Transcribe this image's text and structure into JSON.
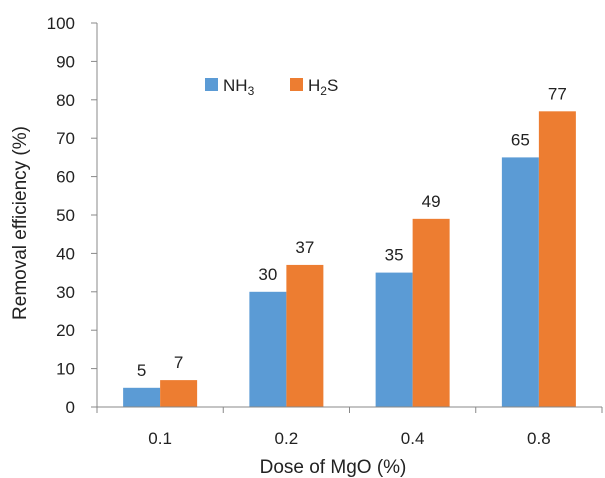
{
  "chart_data": {
    "type": "bar",
    "title": "",
    "xlabel": "Dose of MgO (%)",
    "ylabel": "Removal efficiency (%)",
    "categories": [
      "0.1",
      "0.2",
      "0.4",
      "0.8"
    ],
    "ylim": [
      0,
      100
    ],
    "yticks": [
      0,
      10,
      20,
      30,
      40,
      50,
      60,
      70,
      80,
      90,
      100
    ],
    "grid": false,
    "legend_position": "top-left",
    "series": [
      {
        "name": "NH3",
        "name_main": "NH",
        "name_sub": "3",
        "name_tail": "",
        "color": "#5B9BD5",
        "values": [
          5,
          30,
          35,
          65
        ],
        "labels": [
          "5",
          "30",
          "35",
          "65"
        ]
      },
      {
        "name": "H2S",
        "name_main": "H",
        "name_sub": "2",
        "name_tail": "S",
        "color": "#ED7D31",
        "values": [
          7,
          37,
          49,
          77
        ],
        "labels": [
          "7",
          "37",
          "49",
          "77"
        ]
      }
    ]
  }
}
